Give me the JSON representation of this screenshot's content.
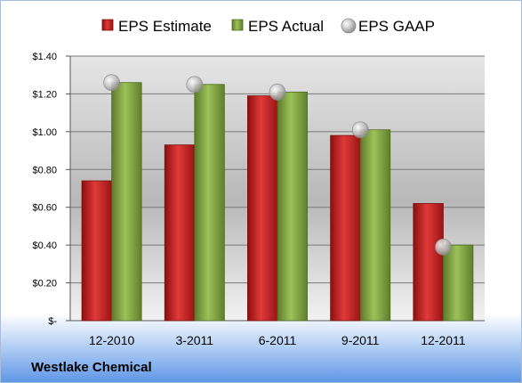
{
  "chart_data": {
    "type": "bar",
    "categories": [
      "12-2010",
      "3-2011",
      "6-2011",
      "9-2011",
      "12-2011"
    ],
    "series": [
      {
        "name": "EPS Estimate",
        "values": [
          0.74,
          0.93,
          1.19,
          0.98,
          0.62
        ],
        "color": "#d32222",
        "kind": "bar"
      },
      {
        "name": "EPS Actual",
        "values": [
          1.26,
          1.25,
          1.21,
          1.01,
          0.4
        ],
        "color": "#7a9f3a",
        "kind": "bar"
      },
      {
        "name": "EPS GAAP",
        "values": [
          1.26,
          1.25,
          1.21,
          1.01,
          0.39
        ],
        "color": "#b9b9b9",
        "kind": "marker"
      }
    ],
    "yticks": [
      "$-",
      "$0.20",
      "$0.40",
      "$0.60",
      "$0.80",
      "$1.00",
      "$1.20",
      "$1.40"
    ],
    "ylim": [
      0,
      1.4
    ],
    "legend_position": "top",
    "grid": true
  },
  "company": "Westlake Chemical"
}
